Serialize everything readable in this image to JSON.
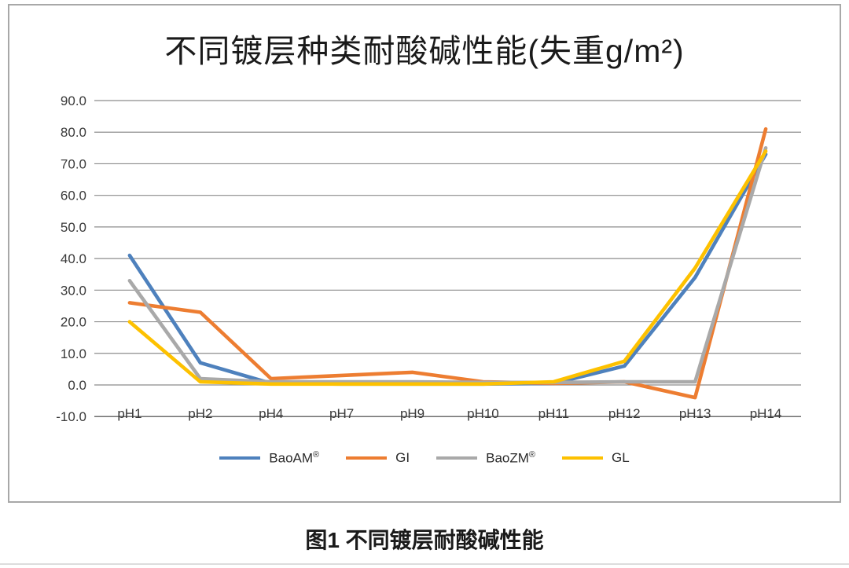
{
  "caption": "图1 不同镀层耐酸碱性能",
  "colors": {
    "blue": "#4e81bd",
    "orange": "#ed7d31",
    "gray": "#a9a9a9",
    "yellow": "#fdc100",
    "gridline": "#8c8c8c",
    "axis_line": "#6e6e6e"
  },
  "chart_data": {
    "type": "line",
    "title": "不同镀层种类耐酸碱性能(失重g/m²)",
    "categories": [
      "pH1",
      "pH2",
      "pH4",
      "pH7",
      "pH9",
      "pH10",
      "pH11",
      "pH12",
      "pH13",
      "pH14"
    ],
    "series": [
      {
        "name": "BaoAM®",
        "color": "#4e81bd",
        "values": [
          41,
          7,
          0.5,
          0.3,
          0.3,
          0.3,
          0.5,
          6,
          34,
          73
        ]
      },
      {
        "name": "GI",
        "color": "#ed7d31",
        "values": [
          26,
          23,
          2,
          3,
          4,
          1,
          0.5,
          1,
          -4,
          81
        ]
      },
      {
        "name": "BaoZM®",
        "color": "#a9a9a9",
        "values": [
          33,
          2,
          1,
          1,
          1,
          0.8,
          0.8,
          1,
          1,
          75
        ]
      },
      {
        "name": "GL",
        "color": "#fdc100",
        "values": [
          20,
          1,
          0.3,
          0.3,
          0.3,
          0.3,
          1,
          7.5,
          37,
          74
        ]
      }
    ],
    "xlabel": "",
    "ylabel": "",
    "ylim": [
      -10,
      90
    ],
    "ytick_step": 10,
    "ytick_format": "one_decimal",
    "grid": true,
    "legend_position": "bottom",
    "legend_labels": [
      "BaoAM®",
      "GI",
      "BaoZM®",
      "GL"
    ]
  }
}
